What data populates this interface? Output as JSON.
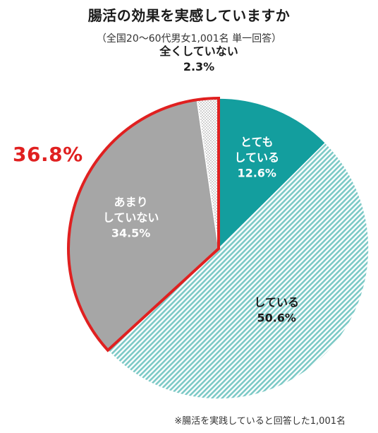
{
  "chart_data": {
    "type": "pie",
    "title": "腸活の効果を実感していますか",
    "subtitle": "（全国20～60代男女1,001名 単一回答）",
    "start": "top, clockwise",
    "slices": [
      {
        "name": "とても\nしている",
        "value": 12.6,
        "pct_label": "12.6%",
        "color": "#139e9e",
        "pattern": "solid",
        "label_color": "#ffffff"
      },
      {
        "name": "している",
        "value": 50.6,
        "pct_label": "50.6%",
        "color": "#7cc9c6",
        "pattern": "diagonal-stripes",
        "label_color": "#1a1a1a"
      },
      {
        "name": "あまり\nしていない",
        "value": 34.5,
        "pct_label": "34.5%",
        "color": "#a6a6a6",
        "pattern": "solid",
        "label_color": "#ffffff"
      },
      {
        "name": "全くしていない",
        "value": 2.3,
        "pct_label": "2.3%",
        "color": "#bfbfbf",
        "pattern": "dots",
        "label_color": "#1a1a1a"
      }
    ],
    "highlight": {
      "value": "36.8%",
      "color": "#e02020",
      "slices": [
        "あまり\nしていない",
        "全くしていない"
      ]
    },
    "note": "※腸活を実践していると回答した1,001名"
  }
}
